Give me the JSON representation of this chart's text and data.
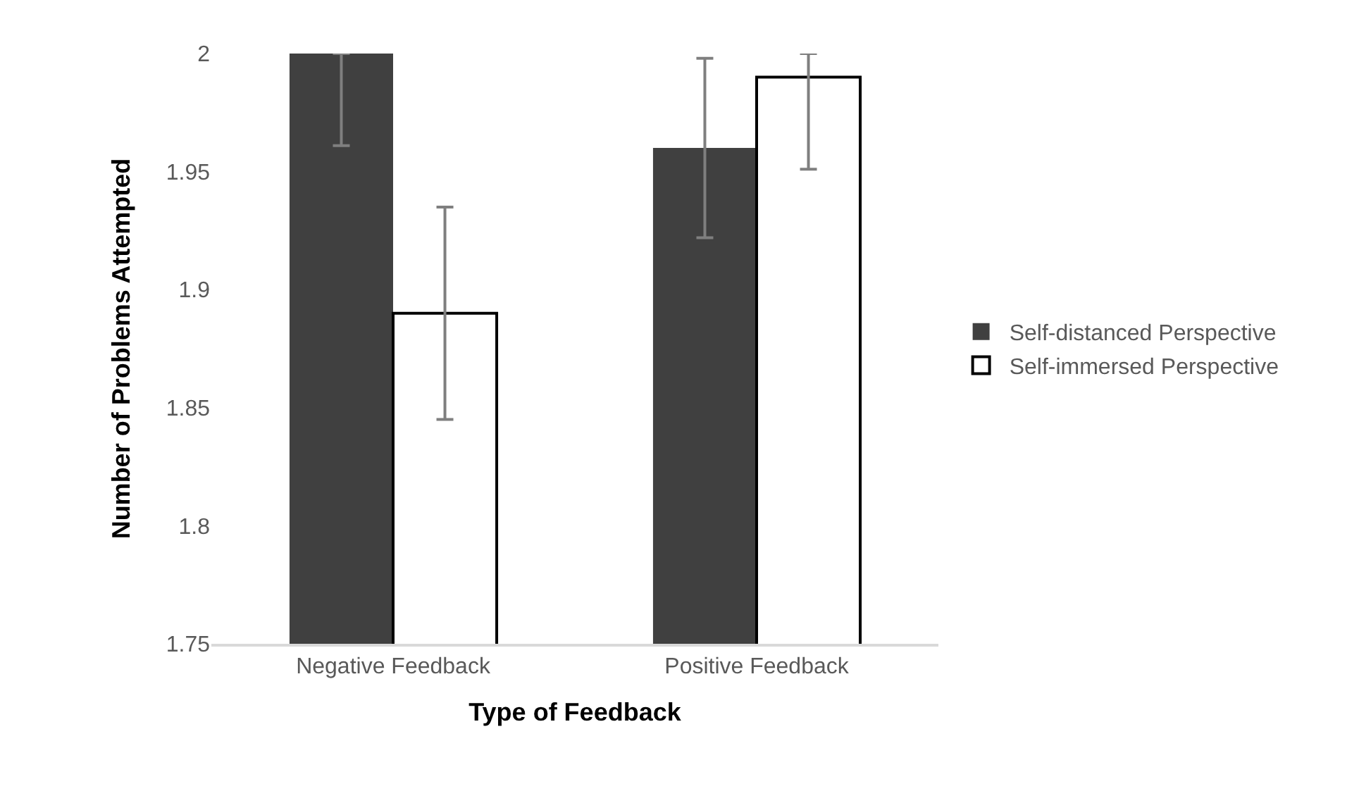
{
  "chart_data": {
    "type": "bar",
    "xlabel": "Type of Feedback",
    "ylabel": "Number of Problems Attempted",
    "categories": [
      "Negative Feedback",
      "Positive Feedback"
    ],
    "series": [
      {
        "name": "Self-distanced Perspective",
        "color": "#404040",
        "values": [
          2.0,
          1.96
        ],
        "errors": [
          [
            1.961,
            2.0
          ],
          [
            1.922,
            1.998
          ]
        ]
      },
      {
        "name": "Self-immersed Perspective",
        "color": "#ffffff",
        "values": [
          1.89,
          1.99
        ],
        "errors": [
          [
            1.845,
            1.935
          ],
          [
            1.951,
            2.0
          ]
        ]
      }
    ],
    "ylim": [
      1.75,
      2
    ],
    "yticks": [
      1.75,
      1.8,
      1.85,
      1.9,
      1.95,
      2
    ],
    "grid": false,
    "legend": "right"
  }
}
